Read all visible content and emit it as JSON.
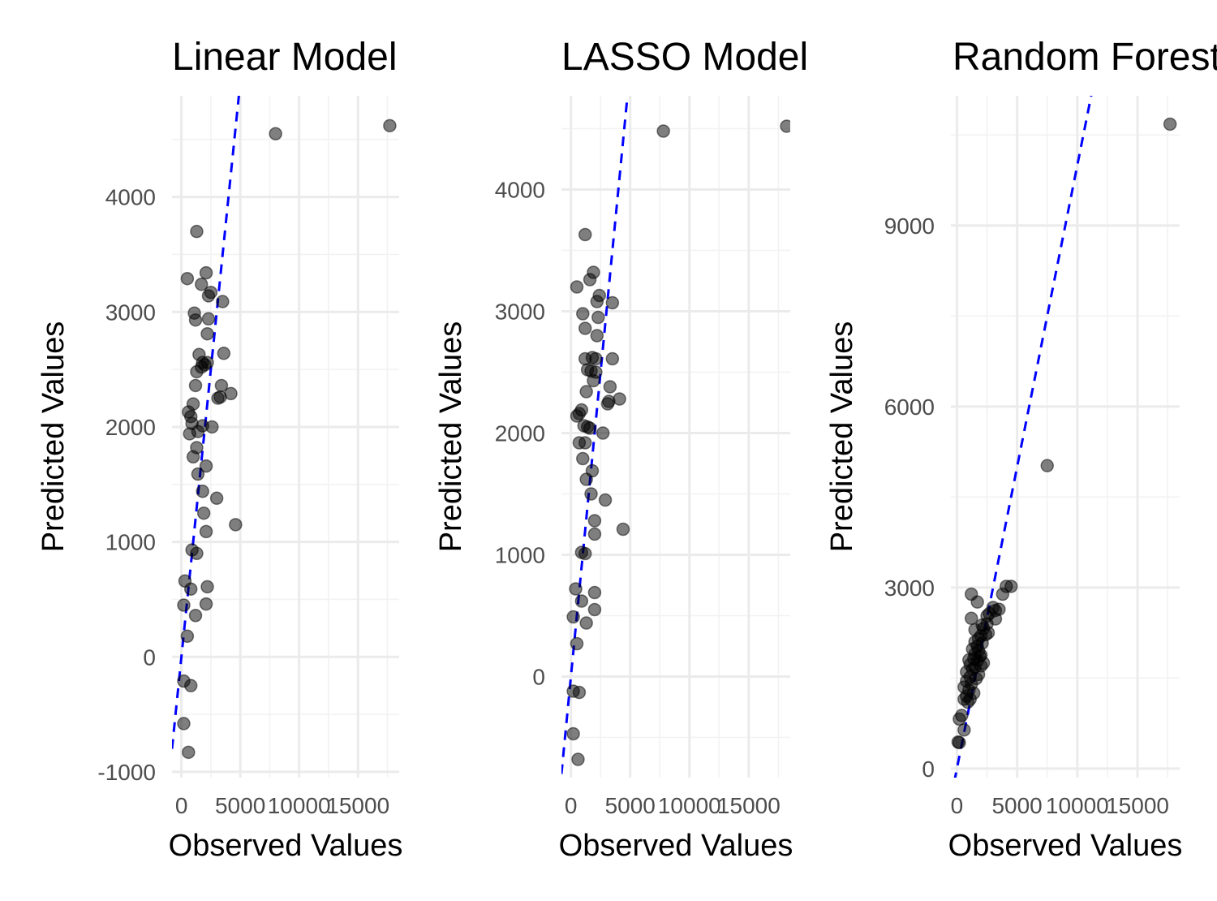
{
  "chart_data": [
    {
      "type": "scatter",
      "title": "Linear Model",
      "xlabel": "Observed Values",
      "ylabel": "Predicted Values",
      "xlim": [
        -800,
        18500
      ],
      "ylim": [
        -1050,
        4880
      ],
      "x_ticks": [
        0,
        5000,
        10000,
        15000
      ],
      "x_tick_labels": [
        "0",
        "5000",
        "10000",
        "15000"
      ],
      "y_ticks": [
        -1000,
        0,
        1000,
        2000,
        3000,
        4000
      ],
      "y_tick_labels": [
        "-1000",
        "0",
        "1000",
        "2000",
        "3000",
        "4000"
      ],
      "grid": true,
      "reference_line": {
        "slope": 1,
        "intercept": 0,
        "color": "#0000ff",
        "style": "dashed"
      },
      "points": [
        [
          8000,
          4550
        ],
        [
          17700,
          4620
        ],
        [
          1300,
          3700
        ],
        [
          500,
          3290
        ],
        [
          2100,
          3340
        ],
        [
          1700,
          3240
        ],
        [
          2500,
          3170
        ],
        [
          3500,
          3090
        ],
        [
          2300,
          3140
        ],
        [
          1100,
          2990
        ],
        [
          1200,
          2930
        ],
        [
          2300,
          2940
        ],
        [
          2200,
          2810
        ],
        [
          3600,
          2640
        ],
        [
          1500,
          2630
        ],
        [
          1800,
          2560
        ],
        [
          2200,
          2560
        ],
        [
          2000,
          2540
        ],
        [
          1300,
          2480
        ],
        [
          1700,
          2520
        ],
        [
          1200,
          2360
        ],
        [
          3400,
          2360
        ],
        [
          3100,
          2250
        ],
        [
          3300,
          2260
        ],
        [
          4200,
          2290
        ],
        [
          1000,
          2200
        ],
        [
          600,
          2130
        ],
        [
          800,
          2090
        ],
        [
          900,
          2030
        ],
        [
          1800,
          2010
        ],
        [
          2600,
          2000
        ],
        [
          1400,
          1960
        ],
        [
          700,
          1940
        ],
        [
          1300,
          1820
        ],
        [
          1000,
          1740
        ],
        [
          2100,
          1660
        ],
        [
          1400,
          1590
        ],
        [
          1800,
          1440
        ],
        [
          3000,
          1380
        ],
        [
          1900,
          1250
        ],
        [
          4600,
          1150
        ],
        [
          2100,
          1090
        ],
        [
          900,
          930
        ],
        [
          1300,
          900
        ],
        [
          300,
          660
        ],
        [
          800,
          590
        ],
        [
          2200,
          610
        ],
        [
          200,
          450
        ],
        [
          2100,
          460
        ],
        [
          1200,
          360
        ],
        [
          500,
          180
        ],
        [
          200,
          -210
        ],
        [
          800,
          -250
        ],
        [
          200,
          -580
        ],
        [
          600,
          -830
        ]
      ]
    },
    {
      "type": "scatter",
      "title": "LASSO Model",
      "xlabel": "Observed Values",
      "ylabel": "Predicted Values",
      "xlim": [
        -800,
        18500
      ],
      "ylim": [
        -830,
        4770
      ],
      "x_ticks": [
        0,
        5000,
        10000,
        15000
      ],
      "x_tick_labels": [
        "0",
        "5000",
        "10000",
        "15000"
      ],
      "y_ticks": [
        0,
        1000,
        2000,
        3000,
        4000
      ],
      "y_tick_labels": [
        "0",
        "1000",
        "2000",
        "3000",
        "4000"
      ],
      "grid": true,
      "reference_line": {
        "slope": 1,
        "intercept": 0,
        "color": "#0000ff",
        "style": "dashed"
      },
      "points": [
        [
          7800,
          4480
        ],
        [
          18200,
          4520
        ],
        [
          1200,
          3630
        ],
        [
          1900,
          3320
        ],
        [
          1600,
          3260
        ],
        [
          500,
          3200
        ],
        [
          2400,
          3130
        ],
        [
          3500,
          3070
        ],
        [
          2200,
          3080
        ],
        [
          1000,
          2980
        ],
        [
          2300,
          2950
        ],
        [
          1200,
          2860
        ],
        [
          2200,
          2800
        ],
        [
          3500,
          2610
        ],
        [
          1200,
          2610
        ],
        [
          1800,
          2620
        ],
        [
          2100,
          2610
        ],
        [
          1400,
          2520
        ],
        [
          1700,
          2510
        ],
        [
          2100,
          2500
        ],
        [
          1900,
          2430
        ],
        [
          3300,
          2380
        ],
        [
          1300,
          2340
        ],
        [
          4100,
          2280
        ],
        [
          3100,
          2240
        ],
        [
          3200,
          2260
        ],
        [
          900,
          2190
        ],
        [
          700,
          2160
        ],
        [
          500,
          2140
        ],
        [
          1100,
          2060
        ],
        [
          1400,
          2050
        ],
        [
          2700,
          2000
        ],
        [
          1600,
          2040
        ],
        [
          700,
          1920
        ],
        [
          1200,
          1920
        ],
        [
          1000,
          1790
        ],
        [
          1800,
          1690
        ],
        [
          1300,
          1620
        ],
        [
          1700,
          1500
        ],
        [
          2900,
          1450
        ],
        [
          2000,
          1280
        ],
        [
          4400,
          1210
        ],
        [
          2000,
          1170
        ],
        [
          900,
          1020
        ],
        [
          1200,
          1010
        ],
        [
          400,
          720
        ],
        [
          2000,
          690
        ],
        [
          900,
          620
        ],
        [
          200,
          490
        ],
        [
          1300,
          440
        ],
        [
          2000,
          550
        ],
        [
          500,
          270
        ],
        [
          200,
          -120
        ],
        [
          700,
          -130
        ],
        [
          200,
          -470
        ],
        [
          600,
          -680
        ]
      ]
    },
    {
      "type": "scatter",
      "title": "Random Forest Model",
      "xlabel": "Observed Values",
      "ylabel": "Predicted Values",
      "xlim": [
        -500,
        18500
      ],
      "ylim": [
        -150,
        11150
      ],
      "x_ticks": [
        0,
        5000,
        10000,
        15000
      ],
      "x_tick_labels": [
        "0",
        "5000",
        "10000",
        "15000"
      ],
      "y_ticks": [
        0,
        3000,
        6000,
        9000
      ],
      "y_tick_labels": [
        "0",
        "3000",
        "6000",
        "9000"
      ],
      "grid": true,
      "reference_line": {
        "slope": 1,
        "intercept": 0,
        "color": "#0000ff",
        "style": "dashed"
      },
      "points": [
        [
          17700,
          10680
        ],
        [
          7500,
          5020
        ],
        [
          4500,
          3020
        ],
        [
          4100,
          3020
        ],
        [
          3800,
          2890
        ],
        [
          1200,
          2890
        ],
        [
          1700,
          2760
        ],
        [
          3000,
          2670
        ],
        [
          3500,
          2640
        ],
        [
          3200,
          2620
        ],
        [
          2700,
          2570
        ],
        [
          2500,
          2530
        ],
        [
          3200,
          2480
        ],
        [
          1200,
          2490
        ],
        [
          2500,
          2400
        ],
        [
          2100,
          2380
        ],
        [
          2200,
          2320
        ],
        [
          1500,
          2300
        ],
        [
          2600,
          2250
        ],
        [
          2400,
          2220
        ],
        [
          2000,
          2200
        ],
        [
          1800,
          2150
        ],
        [
          1500,
          2100
        ],
        [
          2100,
          2080
        ],
        [
          1700,
          2030
        ],
        [
          1300,
          1980
        ],
        [
          1800,
          1950
        ],
        [
          1500,
          1900
        ],
        [
          2000,
          1880
        ],
        [
          1900,
          1860
        ],
        [
          1000,
          1800
        ],
        [
          1400,
          1820
        ],
        [
          1700,
          1780
        ],
        [
          2200,
          1750
        ],
        [
          1100,
          1720
        ],
        [
          2000,
          1700
        ],
        [
          1500,
          1680
        ],
        [
          1300,
          1650
        ],
        [
          800,
          1600
        ],
        [
          1800,
          1560
        ],
        [
          1100,
          1520
        ],
        [
          1600,
          1490
        ],
        [
          800,
          1450
        ],
        [
          1200,
          1400
        ],
        [
          600,
          1350
        ],
        [
          1000,
          1300
        ],
        [
          1400,
          1250
        ],
        [
          800,
          1200
        ],
        [
          1100,
          1150
        ],
        [
          600,
          1150
        ],
        [
          900,
          1100
        ],
        [
          400,
          880
        ],
        [
          200,
          820
        ],
        [
          600,
          640
        ],
        [
          200,
          430
        ],
        [
          100,
          440
        ]
      ]
    }
  ]
}
